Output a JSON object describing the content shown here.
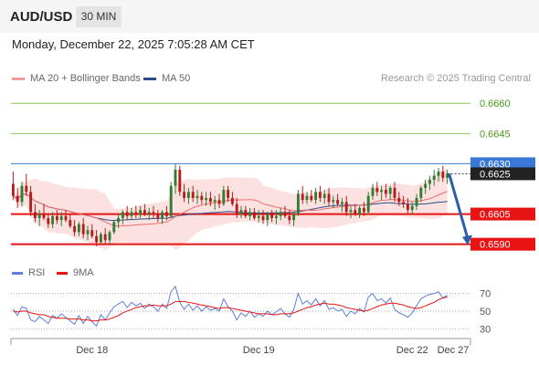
{
  "header": {
    "pair": "AUD/USD",
    "timeframe": "30 MIN",
    "datetime": "Monday, December 22, 2025 7:05:28 AM CET",
    "credit": "Research © 2025 Trading Central"
  },
  "legend": {
    "ma20": "MA 20 + Bollinger Bands",
    "ma50": "MA 50",
    "rsi": "RSI",
    "ma9": "9MA"
  },
  "colors": {
    "resistance_line": "#88cc55",
    "pivot_line": "#3a78d8",
    "support_line": "#e81313",
    "ma20": "#f06b6b",
    "ma50": "#2b4c8a",
    "bollinger_fill": "#fbd4d4",
    "candle_up": "#2e7d32",
    "candle_down": "#b71c1c",
    "arrow": "#2b5ea8",
    "rsi": "#5b7fdb",
    "rsi_ma": "#e81313"
  },
  "chart_data": {
    "type": "candlestick",
    "instrument": "AUD/USD",
    "interval": "30 MIN",
    "ylim": [
      0.65835,
      0.6666
    ],
    "levels": [
      {
        "value": 0.666,
        "label": "0.6660",
        "kind": "resistance"
      },
      {
        "value": 0.6645,
        "label": "0.6645",
        "kind": "resistance"
      },
      {
        "value": 0.663,
        "label": "0.6630",
        "kind": "pivot"
      },
      {
        "value": 0.6605,
        "label": "0.6605",
        "kind": "support"
      },
      {
        "value": 0.659,
        "label": "0.6590",
        "kind": "support"
      }
    ],
    "last_price": {
      "value": 0.6625,
      "label": "0.6625"
    },
    "forecast": {
      "from": 0.6625,
      "to": 0.659
    },
    "x_ticks": [
      "Dec 18",
      "Dec 19",
      "Dec 22",
      "Dec 27"
    ],
    "x_tick_index": [
      18,
      56,
      91,
      108
    ],
    "ohlc": [
      [
        0.662,
        0.6626,
        0.6612,
        0.6614
      ],
      [
        0.6614,
        0.6618,
        0.6608,
        0.6611
      ],
      [
        0.6611,
        0.6621,
        0.6609,
        0.6619
      ],
      [
        0.6619,
        0.6625,
        0.6614,
        0.6616
      ],
      [
        0.6616,
        0.6619,
        0.6604,
        0.6606
      ],
      [
        0.6606,
        0.661,
        0.6601,
        0.6603
      ],
      [
        0.6603,
        0.6607,
        0.6599,
        0.6605
      ],
      [
        0.6605,
        0.661,
        0.6602,
        0.6603
      ],
      [
        0.6603,
        0.6605,
        0.6598,
        0.66
      ],
      [
        0.66,
        0.6606,
        0.6598,
        0.6604
      ],
      [
        0.6604,
        0.6607,
        0.66,
        0.6602
      ],
      [
        0.6602,
        0.6606,
        0.6599,
        0.6604
      ],
      [
        0.6604,
        0.6607,
        0.6601,
        0.6602
      ],
      [
        0.6602,
        0.6605,
        0.6598,
        0.6599
      ],
      [
        0.6599,
        0.6602,
        0.6594,
        0.6596
      ],
      [
        0.6596,
        0.6601,
        0.6594,
        0.66
      ],
      [
        0.66,
        0.6603,
        0.6593,
        0.6595
      ],
      [
        0.6595,
        0.6599,
        0.6592,
        0.6597
      ],
      [
        0.6597,
        0.66,
        0.6593,
        0.6594
      ],
      [
        0.6594,
        0.6597,
        0.6589,
        0.6591
      ],
      [
        0.6591,
        0.6596,
        0.659,
        0.6595
      ],
      [
        0.6595,
        0.6598,
        0.659,
        0.6592
      ],
      [
        0.6592,
        0.6597,
        0.659,
        0.6596
      ],
      [
        0.6596,
        0.6602,
        0.6595,
        0.6601
      ],
      [
        0.6601,
        0.6605,
        0.6598,
        0.6603
      ],
      [
        0.6603,
        0.6607,
        0.66,
        0.6606
      ],
      [
        0.6606,
        0.6609,
        0.6602,
        0.6604
      ],
      [
        0.6604,
        0.6608,
        0.6602,
        0.6606
      ],
      [
        0.6606,
        0.6609,
        0.6603,
        0.6605
      ],
      [
        0.6605,
        0.6609,
        0.6603,
        0.6607
      ],
      [
        0.6607,
        0.661,
        0.6604,
        0.6605
      ],
      [
        0.6605,
        0.6608,
        0.6602,
        0.6606
      ],
      [
        0.6606,
        0.6609,
        0.6603,
        0.6605
      ],
      [
        0.6605,
        0.6607,
        0.6601,
        0.6603
      ],
      [
        0.6603,
        0.6607,
        0.66,
        0.6606
      ],
      [
        0.6606,
        0.6609,
        0.6602,
        0.6604
      ],
      [
        0.6604,
        0.6621,
        0.6603,
        0.6619
      ],
      [
        0.6619,
        0.663,
        0.6615,
        0.6627
      ],
      [
        0.6627,
        0.6629,
        0.6614,
        0.6616
      ],
      [
        0.6616,
        0.662,
        0.6611,
        0.6613
      ],
      [
        0.6613,
        0.6618,
        0.661,
        0.6616
      ],
      [
        0.6616,
        0.6619,
        0.6611,
        0.6613
      ],
      [
        0.6613,
        0.6617,
        0.661,
        0.6614
      ],
      [
        0.6614,
        0.6616,
        0.661,
        0.6612
      ],
      [
        0.6612,
        0.6616,
        0.6609,
        0.6613
      ],
      [
        0.6613,
        0.6616,
        0.6609,
        0.6611
      ],
      [
        0.6611,
        0.6614,
        0.6607,
        0.6612
      ],
      [
        0.6612,
        0.6615,
        0.6608,
        0.661
      ],
      [
        0.661,
        0.6619,
        0.6609,
        0.6617
      ],
      [
        0.6617,
        0.6619,
        0.6611,
        0.6613
      ],
      [
        0.6613,
        0.6616,
        0.6609,
        0.661
      ],
      [
        0.661,
        0.6613,
        0.6603,
        0.6605
      ],
      [
        0.6605,
        0.6609,
        0.6603,
        0.6607
      ],
      [
        0.6607,
        0.6609,
        0.6603,
        0.6604
      ],
      [
        0.6604,
        0.6608,
        0.6602,
        0.6606
      ],
      [
        0.6606,
        0.6608,
        0.6602,
        0.6603
      ],
      [
        0.6603,
        0.6607,
        0.6601,
        0.6604
      ],
      [
        0.6604,
        0.6607,
        0.66,
        0.6602
      ],
      [
        0.6602,
        0.6606,
        0.6599,
        0.6605
      ],
      [
        0.6605,
        0.6607,
        0.6601,
        0.6603
      ],
      [
        0.6603,
        0.6607,
        0.66,
        0.6604
      ],
      [
        0.6604,
        0.6608,
        0.6602,
        0.6606
      ],
      [
        0.6606,
        0.6609,
        0.6603,
        0.6604
      ],
      [
        0.6604,
        0.6607,
        0.66,
        0.6602
      ],
      [
        0.6602,
        0.6606,
        0.6599,
        0.6605
      ],
      [
        0.6605,
        0.6617,
        0.6604,
        0.6615
      ],
      [
        0.6615,
        0.6619,
        0.661,
        0.6612
      ],
      [
        0.6612,
        0.6616,
        0.661,
        0.6614
      ],
      [
        0.6614,
        0.6617,
        0.6611,
        0.6612
      ],
      [
        0.6612,
        0.6618,
        0.661,
        0.6616
      ],
      [
        0.6616,
        0.6619,
        0.6611,
        0.6613
      ],
      [
        0.6613,
        0.6617,
        0.661,
        0.6615
      ],
      [
        0.6615,
        0.6618,
        0.6609,
        0.6611
      ],
      [
        0.6611,
        0.6614,
        0.6608,
        0.6612
      ],
      [
        0.6612,
        0.6615,
        0.6609,
        0.661
      ],
      [
        0.661,
        0.6613,
        0.6606,
        0.6611
      ],
      [
        0.6611,
        0.6614,
        0.6604,
        0.6606
      ],
      [
        0.6606,
        0.6609,
        0.6603,
        0.6607
      ],
      [
        0.6607,
        0.661,
        0.6604,
        0.6605
      ],
      [
        0.6605,
        0.6609,
        0.6603,
        0.6608
      ],
      [
        0.6608,
        0.6611,
        0.6604,
        0.6606
      ],
      [
        0.6606,
        0.6616,
        0.6605,
        0.6614
      ],
      [
        0.6614,
        0.662,
        0.6612,
        0.6618
      ],
      [
        0.6618,
        0.6621,
        0.6614,
        0.6616
      ],
      [
        0.6616,
        0.6619,
        0.6612,
        0.6617
      ],
      [
        0.6617,
        0.662,
        0.6613,
        0.6615
      ],
      [
        0.6615,
        0.6619,
        0.6612,
        0.6618
      ],
      [
        0.6618,
        0.6621,
        0.6611,
        0.6613
      ],
      [
        0.6613,
        0.6616,
        0.6609,
        0.6611
      ],
      [
        0.6611,
        0.6614,
        0.6608,
        0.661
      ],
      [
        0.661,
        0.6613,
        0.6605,
        0.6607
      ],
      [
        0.6607,
        0.6611,
        0.6605,
        0.6609
      ],
      [
        0.6609,
        0.6615,
        0.6607,
        0.6613
      ],
      [
        0.6613,
        0.6619,
        0.6611,
        0.6618
      ],
      [
        0.6618,
        0.6622,
        0.6615,
        0.662
      ],
      [
        0.662,
        0.6624,
        0.6617,
        0.6622
      ],
      [
        0.6622,
        0.6627,
        0.6619,
        0.6624
      ],
      [
        0.6624,
        0.6628,
        0.6621,
        0.6626
      ],
      [
        0.6626,
        0.6629,
        0.6621,
        0.6623
      ],
      [
        0.6623,
        0.6627,
        0.662,
        0.6625
      ]
    ],
    "rsi_panel": {
      "levels": [
        70,
        50,
        30
      ],
      "ylim": [
        22,
        80
      ],
      "rsi": [
        52,
        45,
        55,
        53,
        40,
        38,
        44,
        40,
        36,
        45,
        42,
        47,
        43,
        39,
        35,
        45,
        36,
        44,
        38,
        33,
        46,
        40,
        48,
        55,
        58,
        61,
        54,
        60,
        56,
        59,
        53,
        58,
        55,
        50,
        58,
        53,
        72,
        78,
        60,
        52,
        58,
        51,
        56,
        50,
        55,
        51,
        53,
        50,
        64,
        55,
        50,
        40,
        48,
        44,
        50,
        43,
        47,
        44,
        50,
        46,
        49,
        53,
        47,
        43,
        52,
        70,
        58,
        62,
        57,
        64,
        56,
        62,
        52,
        54,
        50,
        52,
        44,
        50,
        47,
        53,
        49,
        66,
        70,
        62,
        64,
        59,
        65,
        52,
        48,
        46,
        43,
        48,
        56,
        64,
        67,
        69,
        70,
        72,
        65,
        68
      ],
      "ma9": [
        50,
        49,
        50,
        50,
        48,
        47,
        46,
        46,
        44,
        43,
        42,
        42,
        42,
        41,
        41,
        41,
        40,
        40,
        39,
        39,
        40,
        40,
        41,
        43,
        45,
        48,
        50,
        52,
        54,
        55,
        56,
        56,
        57,
        56,
        56,
        56,
        58,
        61,
        61,
        61,
        60,
        59,
        58,
        57,
        56,
        55,
        54,
        53,
        54,
        54,
        53,
        52,
        51,
        50,
        49,
        48,
        47,
        47,
        47,
        46,
        46,
        47,
        47,
        47,
        48,
        50,
        52,
        54,
        55,
        57,
        58,
        59,
        58,
        58,
        57,
        56,
        54,
        53,
        52,
        51,
        50,
        51,
        53,
        55,
        57,
        58,
        59,
        59,
        58,
        57,
        55,
        54,
        53,
        54,
        56,
        58,
        60,
        63,
        65,
        66
      ]
    }
  }
}
